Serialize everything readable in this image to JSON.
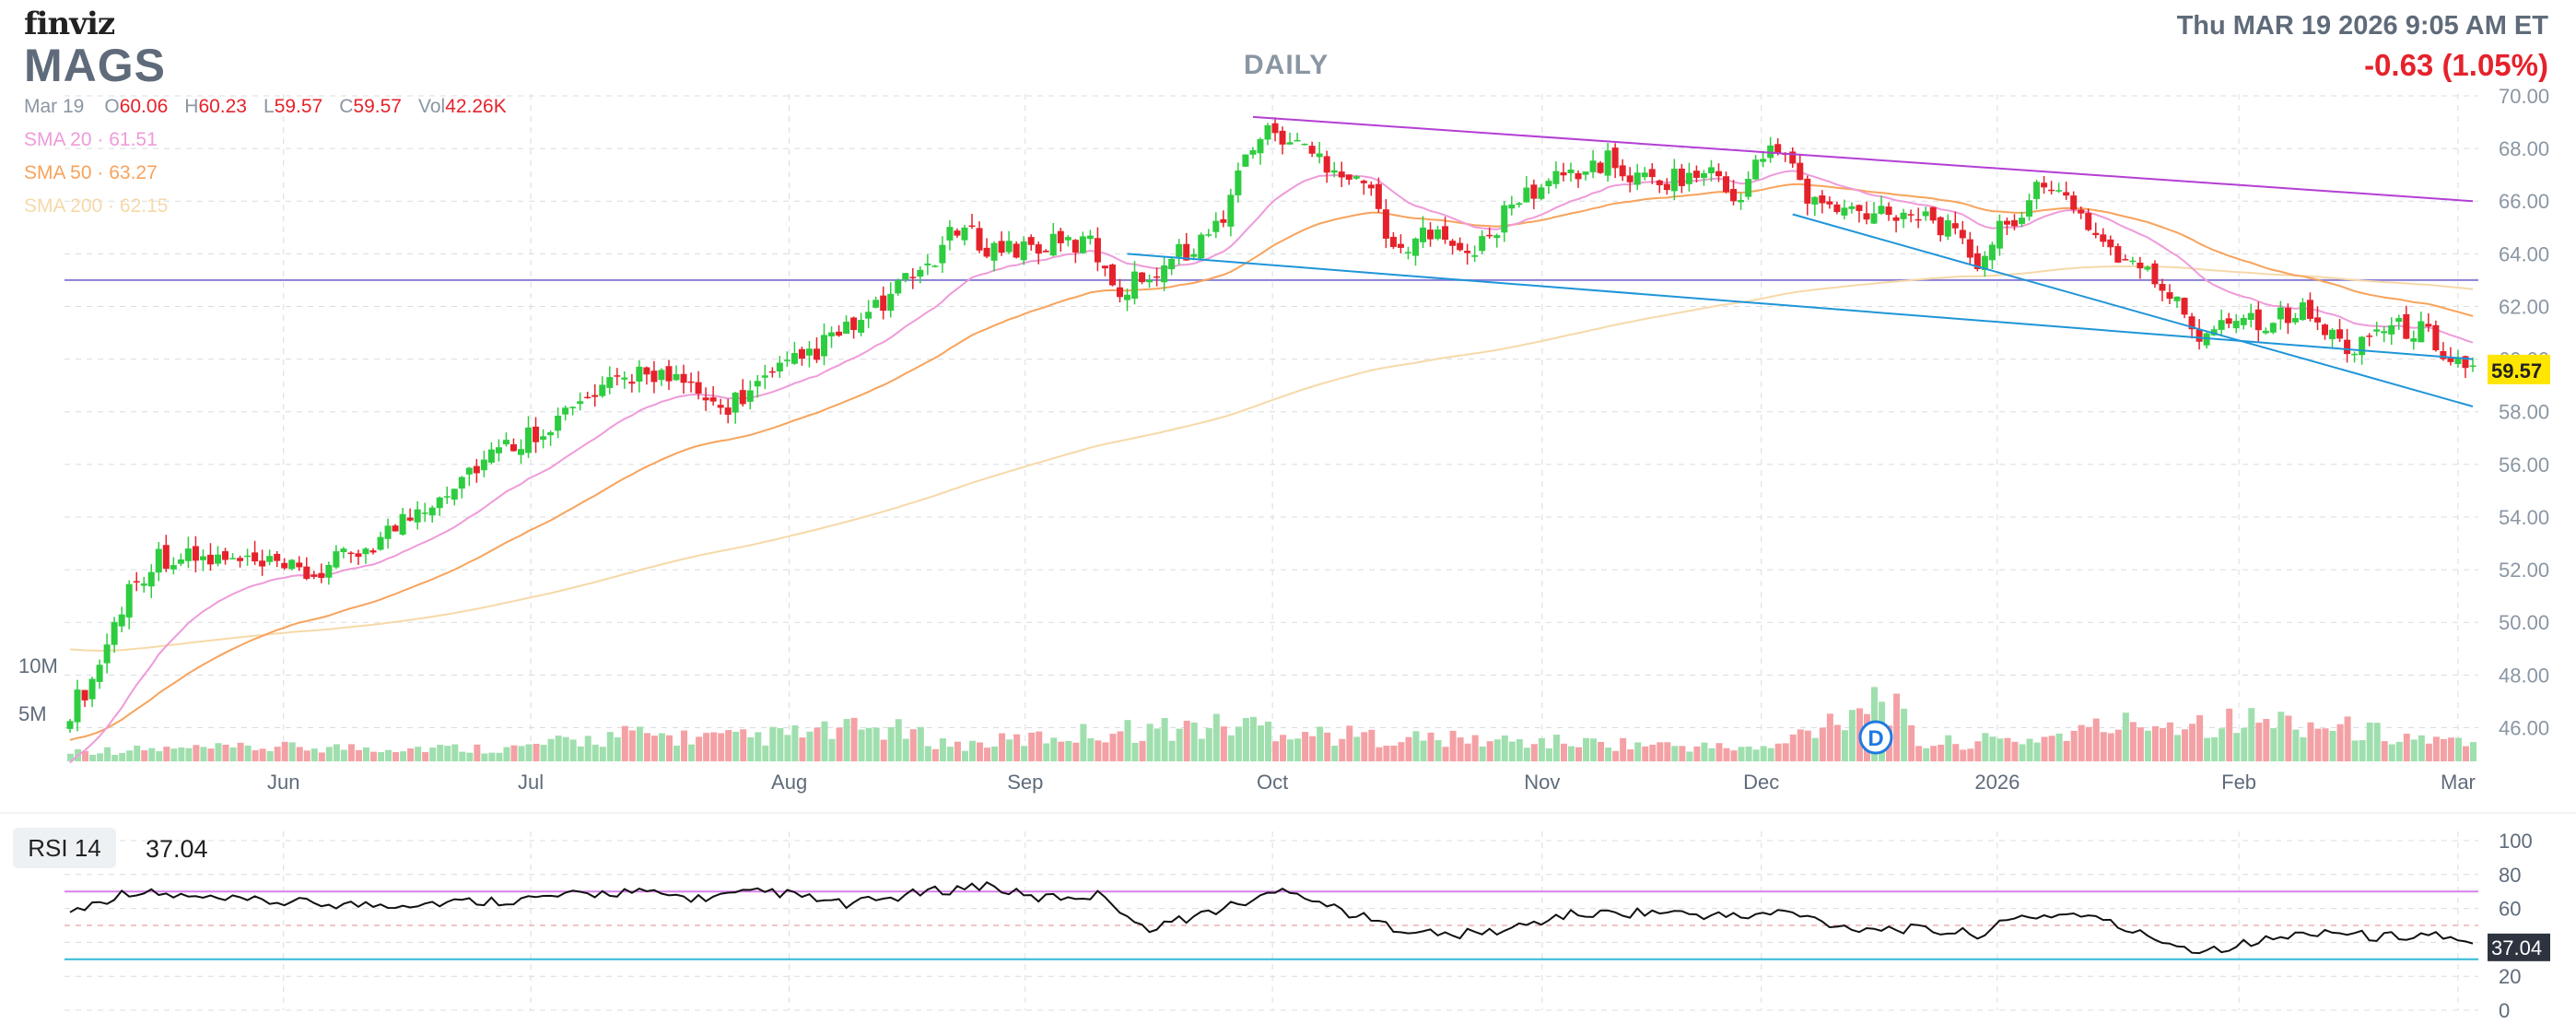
{
  "header": {
    "logo": "finviz",
    "ticker": "MAGS",
    "timeframe": "DAILY",
    "datetime": "Thu MAR 19 2026 9:05 AM ET",
    "change": "-0.63 (1.05%)"
  },
  "ohlc": {
    "date": "Mar 19",
    "open_label": "O",
    "open": "60.06",
    "high_label": "H",
    "high": "60.23",
    "low_label": "L",
    "low": "59.57",
    "close_label": "C",
    "close": "59.57",
    "vol_label": "Vol",
    "vol": "42.26K"
  },
  "indicators": {
    "sma20": {
      "label": "SMA 20",
      "value": "61.51",
      "color": "#ee9bd9"
    },
    "sma50": {
      "label": "SMA 50",
      "value": "63.27",
      "color": "#f7a35c"
    },
    "sma200": {
      "label": "SMA 200",
      "value": "62.15",
      "color": "#f6d9a8"
    }
  },
  "rsi": {
    "label": "RSI 14",
    "value": "37.04"
  },
  "colors": {
    "up": "#2ecc40",
    "down": "#e5222b",
    "vol_up": "#9fdfae",
    "vol_down": "#f4a1a5",
    "trend_purple": "#b33fd4",
    "trend_blue": "#1f95d8",
    "horizontal_line": "#8a7fd6",
    "rsi_line": "#111111",
    "rsi_upper": "#d680e8",
    "rsi_lower": "#30b8d6",
    "price_tag": "#ffe600"
  },
  "chart_data": {
    "type": "candlestick",
    "ylim": [
      45,
      70
    ],
    "y_ticks": [
      "70.00",
      "68.00",
      "66.00",
      "64.00",
      "62.00",
      "60.00",
      "58.00",
      "56.00",
      "54.00",
      "52.00",
      "50.00",
      "48.00",
      "46.00"
    ],
    "x_labels": [
      "Jun",
      "Jul",
      "Aug",
      "Sep",
      "Oct",
      "Nov",
      "Dec",
      "2026",
      "Feb",
      "Mar"
    ],
    "volume_labels": [
      "10M",
      "5M"
    ],
    "last_price": "59.57",
    "price_anchors": [
      [
        0,
        46.7
      ],
      [
        3,
        47.8
      ],
      [
        8,
        51.3
      ],
      [
        12,
        52.5
      ],
      [
        22,
        52.3
      ],
      [
        33,
        51.8
      ],
      [
        42,
        53.2
      ],
      [
        55,
        56.0
      ],
      [
        65,
        57.6
      ],
      [
        78,
        59.7
      ],
      [
        88,
        58.1
      ],
      [
        95,
        59.3
      ],
      [
        108,
        61.6
      ],
      [
        116,
        63.6
      ],
      [
        120,
        64.9
      ],
      [
        125,
        64.2
      ],
      [
        138,
        64.4
      ],
      [
        142,
        62.6
      ],
      [
        150,
        64.0
      ],
      [
        155,
        64.9
      ],
      [
        160,
        68.3
      ],
      [
        163,
        68.6
      ],
      [
        168,
        67.8
      ],
      [
        175,
        66.8
      ],
      [
        180,
        63.8
      ],
      [
        185,
        65.3
      ],
      [
        189,
        63.7
      ],
      [
        196,
        66.1
      ],
      [
        202,
        67.0
      ],
      [
        208,
        67.5
      ],
      [
        212,
        66.8
      ],
      [
        218,
        66.9
      ],
      [
        222,
        67.1
      ],
      [
        225,
        66.0
      ],
      [
        229,
        67.7
      ],
      [
        232,
        68.0
      ],
      [
        235,
        66.0
      ],
      [
        240,
        65.6
      ],
      [
        246,
        65.7
      ],
      [
        252,
        65.4
      ],
      [
        258,
        63.7
      ],
      [
        262,
        65.2
      ],
      [
        266,
        66.3
      ],
      [
        270,
        66.3
      ],
      [
        274,
        64.7
      ],
      [
        278,
        63.7
      ],
      [
        283,
        62.8
      ],
      [
        288,
        60.9
      ],
      [
        292,
        61.7
      ],
      [
        297,
        61.5
      ],
      [
        302,
        61.8
      ],
      [
        308,
        60.4
      ],
      [
        312,
        61.2
      ],
      [
        318,
        61.1
      ],
      [
        323,
        59.9
      ],
      [
        325,
        59.6
      ]
    ],
    "vol_anchors": [
      [
        0,
        1.2
      ],
      [
        30,
        1.6
      ],
      [
        60,
        1.5
      ],
      [
        75,
        3.0
      ],
      [
        90,
        2.6
      ],
      [
        110,
        3.8
      ],
      [
        120,
        1.8
      ],
      [
        140,
        3.4
      ],
      [
        160,
        4.2
      ],
      [
        170,
        3.0
      ],
      [
        190,
        2.4
      ],
      [
        210,
        2.0
      ],
      [
        230,
        1.4
      ],
      [
        245,
        7.8
      ],
      [
        250,
        2.0
      ],
      [
        265,
        2.5
      ],
      [
        280,
        4.5
      ],
      [
        300,
        4.6
      ],
      [
        325,
        1.8
      ]
    ],
    "rsi_anchors": [
      [
        0,
        58
      ],
      [
        8,
        70
      ],
      [
        20,
        65
      ],
      [
        40,
        62
      ],
      [
        60,
        65
      ],
      [
        75,
        70
      ],
      [
        85,
        66
      ],
      [
        95,
        70
      ],
      [
        105,
        62
      ],
      [
        115,
        69
      ],
      [
        124,
        74
      ],
      [
        130,
        66
      ],
      [
        140,
        68
      ],
      [
        145,
        48
      ],
      [
        150,
        53
      ],
      [
        160,
        65
      ],
      [
        165,
        72
      ],
      [
        170,
        62
      ],
      [
        178,
        50
      ],
      [
        186,
        44
      ],
      [
        194,
        47
      ],
      [
        202,
        56
      ],
      [
        214,
        58
      ],
      [
        226,
        55
      ],
      [
        232,
        58
      ],
      [
        240,
        49
      ],
      [
        248,
        48
      ],
      [
        258,
        45
      ],
      [
        264,
        55
      ],
      [
        272,
        57
      ],
      [
        280,
        45
      ],
      [
        288,
        35
      ],
      [
        298,
        42
      ],
      [
        305,
        47
      ],
      [
        312,
        43
      ],
      [
        320,
        45
      ],
      [
        325,
        37
      ]
    ],
    "rsi_ticks": [
      "100",
      "80",
      "60",
      "40",
      "20",
      "0"
    ],
    "rsi_levels": [
      70,
      30
    ],
    "sma20_start": 44.5,
    "sma50_start": 45.5,
    "sma200_start": 49.0,
    "trendlines": [
      {
        "name": "upper-resistance",
        "x1": 160,
        "y1": 69.2,
        "x2": 325,
        "y2": 66.0
      },
      {
        "name": "lower-support-long",
        "x1": 143,
        "y1": 64.0,
        "x2": 325,
        "y2": 60.0
      },
      {
        "name": "lower-support-short",
        "x1": 233,
        "y1": 65.5,
        "x2": 325,
        "y2": 58.2
      }
    ],
    "horizontal_level": 63.0
  }
}
